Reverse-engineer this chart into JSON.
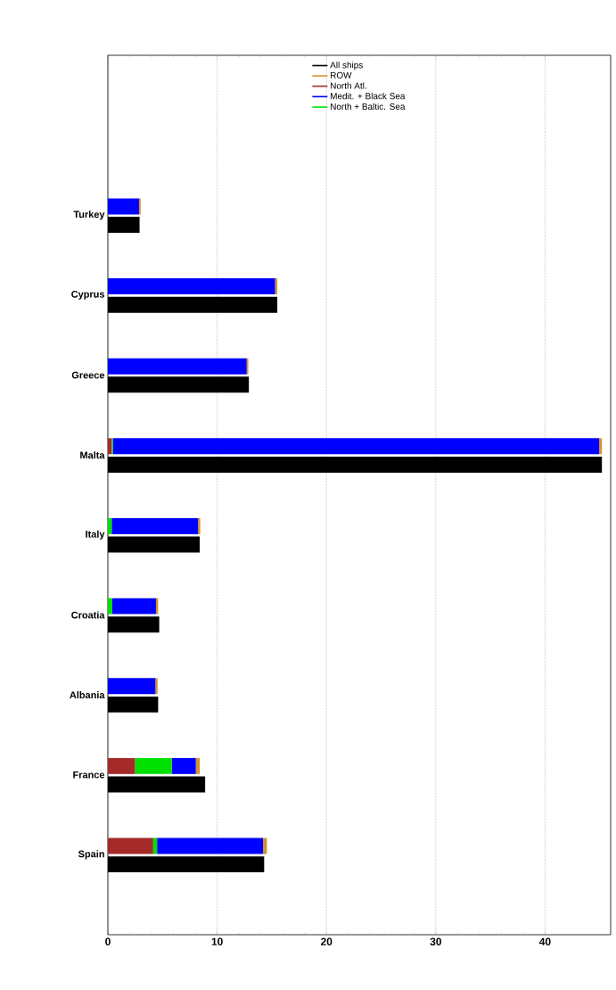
{
  "chart_data": {
    "type": "bar",
    "orientation": "horizontal",
    "categories": [
      "Turkey",
      "Cyprus",
      "Greece",
      "Malta",
      "Italy",
      "Croatia",
      "Albania",
      "France",
      "Spain"
    ],
    "series": [
      {
        "name": "All ships",
        "color": "#000000",
        "values": [
          2.9,
          15.5,
          12.9,
          45.2,
          8.4,
          4.7,
          4.6,
          8.9,
          14.3
        ]
      },
      {
        "name": "ROW",
        "color": "#d4922a",
        "values": [
          0.15,
          0.2,
          0.15,
          0.25,
          0.2,
          0.2,
          0.2,
          0.35,
          0.35
        ],
        "base": [
          2.85,
          15.3,
          12.7,
          44.95,
          8.25,
          4.4,
          4.35,
          8.05,
          14.2
        ]
      },
      {
        "name": "North Atl.",
        "color": "#a52a2a",
        "values": [
          null,
          null,
          null,
          0.35,
          null,
          null,
          null,
          2.5,
          4.15
        ],
        "base": [
          null,
          null,
          null,
          0,
          null,
          null,
          null,
          0,
          0
        ]
      },
      {
        "name": "Medit. + Black Sea",
        "color": "#0000ff",
        "values": [
          2.85,
          15.3,
          12.7,
          44.5,
          7.9,
          4.0,
          4.35,
          2.2,
          9.7
        ],
        "base": [
          0,
          0,
          0,
          0.45,
          0.35,
          0.4,
          0,
          5.85,
          4.5
        ]
      },
      {
        "name": "North + Baltic. Sea",
        "color": "#00e000",
        "values": [
          null,
          null,
          null,
          0.1,
          0.35,
          0.4,
          null,
          3.35,
          0.35
        ],
        "base": [
          null,
          null,
          null,
          0.35,
          0,
          0,
          null,
          2.5,
          4.15
        ]
      }
    ],
    "xlim": [
      0,
      46
    ],
    "xticks": [
      0,
      10,
      20,
      30,
      40
    ],
    "grid": "x",
    "legend": "top"
  }
}
